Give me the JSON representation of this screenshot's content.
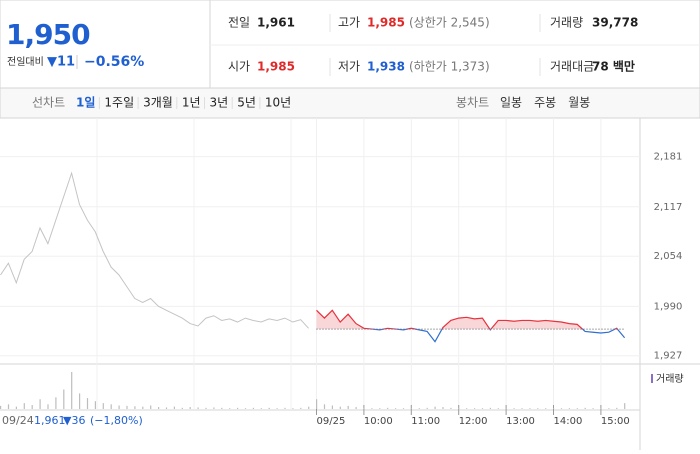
{
  "header": {
    "price": "1,950",
    "change_label": "전일대비",
    "change": "▼11",
    "rate": "−0.56%",
    "rows": [
      [
        {
          "label": "전일",
          "value": "1,961"
        },
        {
          "label": "고가",
          "value": "1,985",
          "note": "(상한가 2,545)"
        },
        {
          "label": "거래량",
          "value": "39,778"
        }
      ],
      [
        {
          "label": "시가",
          "value": "1,985"
        },
        {
          "label": "저가",
          "value": "1,938",
          "note": "(하한가 1,373)"
        },
        {
          "label": "거래대금",
          "value": "78 백만"
        }
      ]
    ]
  },
  "tabs": {
    "line_label": "선차트",
    "line": [
      "1일",
      "1주일",
      "3개월",
      "1년",
      "3년",
      "5년",
      "10년"
    ],
    "candle_label": "봉차트",
    "candle": [
      "일봉",
      "주봉",
      "월봉"
    ]
  },
  "info": {
    "date": "09/24",
    "close": "1,961",
    "change": "▼36",
    "rate": "(−1,80%)"
  },
  "chart_data": {
    "type": "line",
    "categories": [
      null,
      null,
      null,
      null,
      null,
      null,
      null,
      null,
      null,
      null,
      null,
      null,
      null,
      null,
      null,
      null,
      null,
      null,
      null,
      null,
      null,
      null,
      null,
      null,
      null,
      null,
      null,
      null,
      null,
      null,
      null,
      null,
      null,
      null,
      null,
      null,
      null,
      null,
      null,
      null,
      "09/25",
      null,
      null,
      null,
      null,
      null,
      "10:00",
      null,
      null,
      null,
      null,
      null,
      "11:00",
      null,
      null,
      null,
      null,
      null,
      "12:00",
      null,
      null,
      null,
      null,
      null,
      "13:00",
      null,
      null,
      null,
      null,
      null,
      "14:00",
      null,
      null,
      null,
      null,
      null,
      "15:00",
      null,
      null,
      null
    ],
    "series": [
      {
        "color": "#c4c4c4",
        "values": [
          2030,
          2045,
          2020,
          2050,
          2060,
          2090,
          2070,
          2100,
          2130,
          2160,
          2120,
          2100,
          2085,
          2060,
          2040,
          2030,
          2015,
          2000,
          1995,
          2000,
          1990,
          1985,
          1980,
          1975,
          1968,
          1965,
          1975,
          1978,
          1972,
          1974,
          1970,
          1975,
          1972,
          1970,
          1974,
          1972,
          1975,
          1970,
          1973,
          1962,
          null,
          null,
          null,
          null,
          null,
          null,
          null,
          null,
          null,
          null,
          null,
          null,
          null,
          null,
          null,
          null,
          null,
          null,
          null,
          null,
          null,
          null,
          null,
          null,
          null,
          null,
          null,
          null,
          null,
          null,
          null,
          null,
          null,
          null,
          null,
          null,
          null,
          null,
          null,
          null
        ]
      },
      {
        "color": "#e8323c",
        "color_below": "#2f6fcf",
        "fill": "#f9d7d9",
        "values": [
          null,
          null,
          null,
          null,
          null,
          null,
          null,
          null,
          null,
          null,
          null,
          null,
          null,
          null,
          null,
          null,
          null,
          null,
          null,
          null,
          null,
          null,
          null,
          null,
          null,
          null,
          null,
          null,
          null,
          null,
          null,
          null,
          null,
          null,
          null,
          null,
          null,
          null,
          null,
          null,
          1985,
          1975,
          1985,
          1970,
          1980,
          1968,
          1962,
          1961,
          1960,
          1962,
          1961,
          1960,
          1962,
          1960,
          1958,
          1945,
          1963,
          1972,
          1975,
          1976,
          1974,
          1975,
          1960,
          1972,
          1972,
          1971,
          1972,
          1972,
          1971,
          1972,
          1971,
          1970,
          1968,
          1967,
          1958,
          1957,
          1956,
          1957,
          1962,
          1950
        ]
      }
    ],
    "baseline": 1961,
    "ylim": [
      1919,
      2215
    ],
    "yticks": [
      {
        "value": 1927,
        "label": "1,927"
      },
      {
        "value": 1990,
        "label": "1,990"
      },
      {
        "value": 2054,
        "label": "2,054"
      },
      {
        "value": 2117,
        "label": "2,117"
      },
      {
        "value": 2181,
        "label": "2,181"
      }
    ],
    "grid": true,
    "volume": {
      "label": "거래량",
      "color": "#bdbdbd",
      "ylim": [
        0,
        10000
      ],
      "values": [
        800,
        1200,
        600,
        1500,
        1000,
        2500,
        1200,
        3000,
        5000,
        9500,
        4000,
        2800,
        2000,
        1500,
        1200,
        900,
        800,
        700,
        600,
        900,
        500,
        400,
        600,
        300,
        500,
        400,
        300,
        400,
        300,
        200,
        300,
        200,
        300,
        200,
        300,
        200,
        300,
        200,
        300,
        600,
        2500,
        1200,
        900,
        600,
        800,
        500,
        300,
        200,
        200,
        300,
        200,
        200,
        200,
        200,
        300,
        600,
        500,
        300,
        300,
        200,
        200,
        200,
        300,
        200,
        200,
        200,
        200,
        200,
        200,
        200,
        200,
        200,
        200,
        200,
        300,
        200,
        200,
        200,
        300,
        1500
      ]
    }
  }
}
